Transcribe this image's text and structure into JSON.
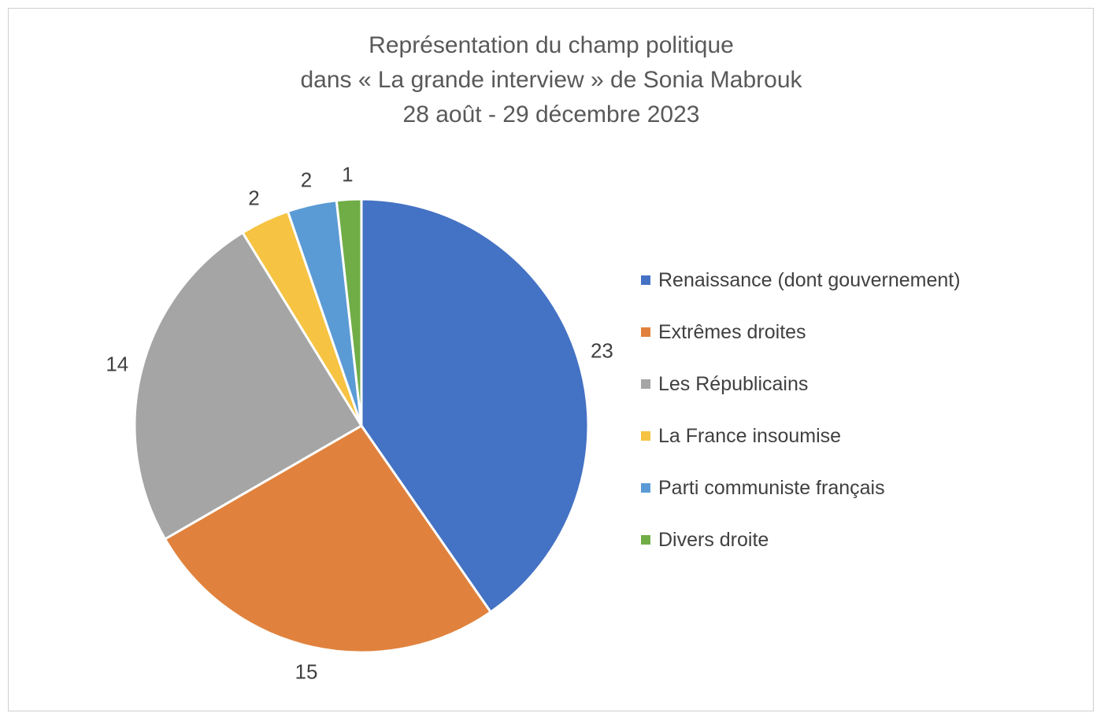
{
  "chart_data": {
    "type": "pie",
    "title_lines": [
      "Représentation du champ politique",
      "dans « La grande interview » de Sonia Mabrouk",
      "28 août - 29 décembre 2023"
    ],
    "categories": [
      "Renaissance (dont gouvernement)",
      "Extrêmes droites",
      "Les Républicains",
      "La France insoumise",
      "Parti communiste français",
      "Divers droite"
    ],
    "values": [
      23,
      15,
      14,
      2,
      2,
      1
    ],
    "colors": [
      "#4472C4",
      "#E0823D",
      "#A5A5A5",
      "#F6C342",
      "#5B9BD5",
      "#70AD47"
    ],
    "data_labels": [
      "23",
      "15",
      "14",
      "2",
      "2",
      "1"
    ],
    "legend_position": "right",
    "start_angle": "12 o'clock",
    "direction": "clockwise"
  }
}
